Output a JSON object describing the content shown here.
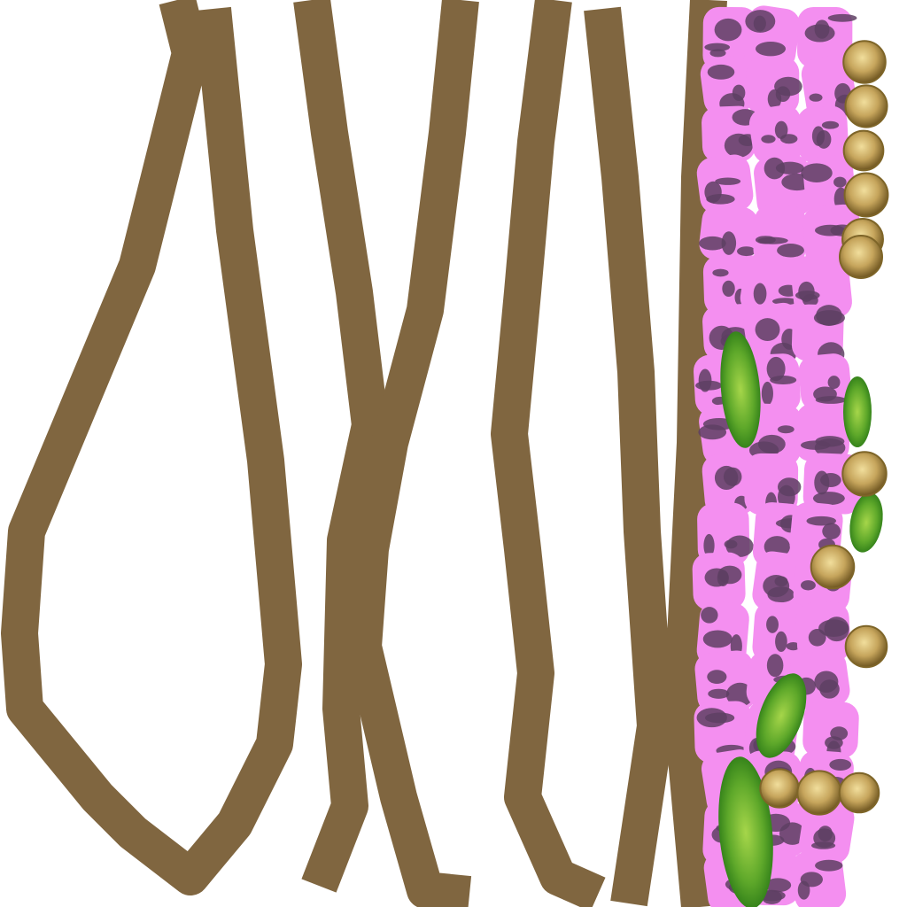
{
  "palette": {
    "background": "#ffffff",
    "stroke_brown": "#806640",
    "petal_pink": "#f48ff0",
    "petal_shadow": "#5e3f63",
    "leaf_green": "#3f9a1c",
    "leaf_light": "#8cc63a",
    "bud_gold": "#c8aa62",
    "bud_dark": "#7e6528"
  },
  "elements": {
    "branch_strokes": [
      "brown-stroke-1",
      "brown-stroke-2",
      "brown-stroke-3",
      "brown-stroke-4",
      "brown-stroke-5"
    ],
    "flower_column": "pink-flower-column",
    "leaves": "green-leaf",
    "buds": "gold-bud"
  }
}
